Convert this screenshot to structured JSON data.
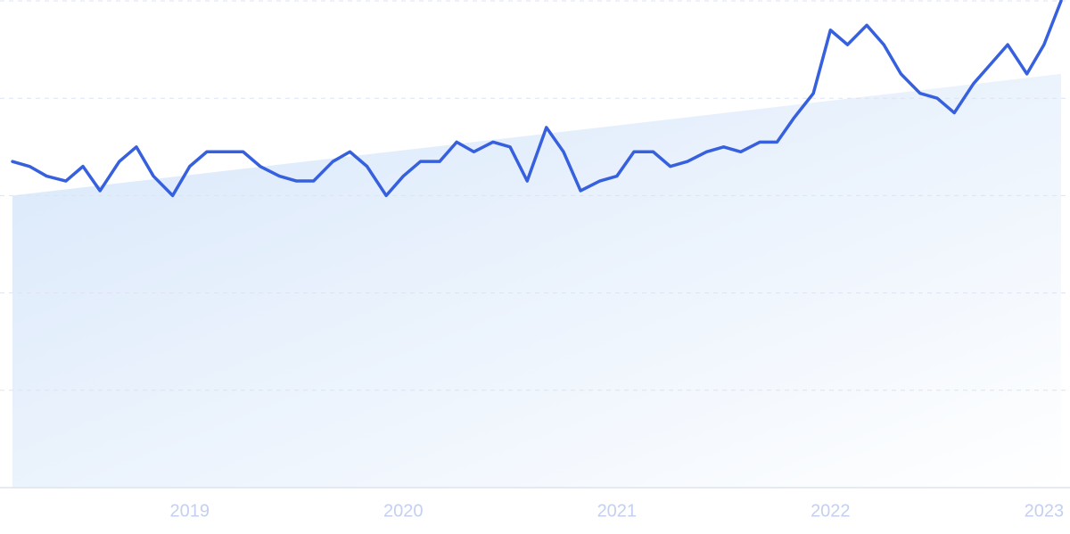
{
  "chart_data": {
    "type": "line",
    "x": [
      2018.17,
      2018.25,
      2018.33,
      2018.42,
      2018.5,
      2018.58,
      2018.67,
      2018.75,
      2018.83,
      2018.92,
      2019.0,
      2019.08,
      2019.17,
      2019.25,
      2019.33,
      2019.42,
      2019.5,
      2019.58,
      2019.67,
      2019.75,
      2019.83,
      2019.92,
      2020.0,
      2020.08,
      2020.17,
      2020.25,
      2020.33,
      2020.42,
      2020.5,
      2020.58,
      2020.67,
      2020.75,
      2020.83,
      2020.92,
      2021.0,
      2021.08,
      2021.17,
      2021.25,
      2021.33,
      2021.42,
      2021.5,
      2021.58,
      2021.67,
      2021.75,
      2021.83,
      2021.92,
      2022.0,
      2022.08,
      2022.17,
      2022.25,
      2022.33,
      2022.42,
      2022.5,
      2022.58,
      2022.67,
      2022.75,
      2022.83,
      2022.92,
      2023.0,
      2023.08
    ],
    "series": [
      {
        "color": "#3660dd",
        "values": [
          67,
          66,
          64,
          63,
          66,
          61,
          67,
          70,
          64,
          60,
          66,
          69,
          69,
          69,
          66,
          64,
          63,
          63,
          67,
          69,
          66,
          60,
          64,
          67,
          67,
          71,
          69,
          71,
          70,
          63,
          74,
          69,
          61,
          63,
          64,
          69,
          69,
          66,
          67,
          69,
          70,
          69,
          71,
          71,
          76,
          81,
          94,
          91,
          95,
          91,
          85,
          81,
          80,
          77,
          83,
          87,
          91,
          85,
          91,
          100
        ]
      }
    ],
    "trend": {
      "x": [
        2018.17,
        2023.08
      ],
      "values": [
        60,
        85
      ],
      "color": "#d6e6fa"
    },
    "xlim": [
      2018.17,
      2023.08
    ],
    "xticks": [
      2019,
      2020,
      2021,
      2022,
      2023
    ],
    "ylim": [
      0,
      100
    ],
    "yticks": [
      0,
      20,
      40,
      60,
      80,
      100
    ],
    "grid": true
  }
}
